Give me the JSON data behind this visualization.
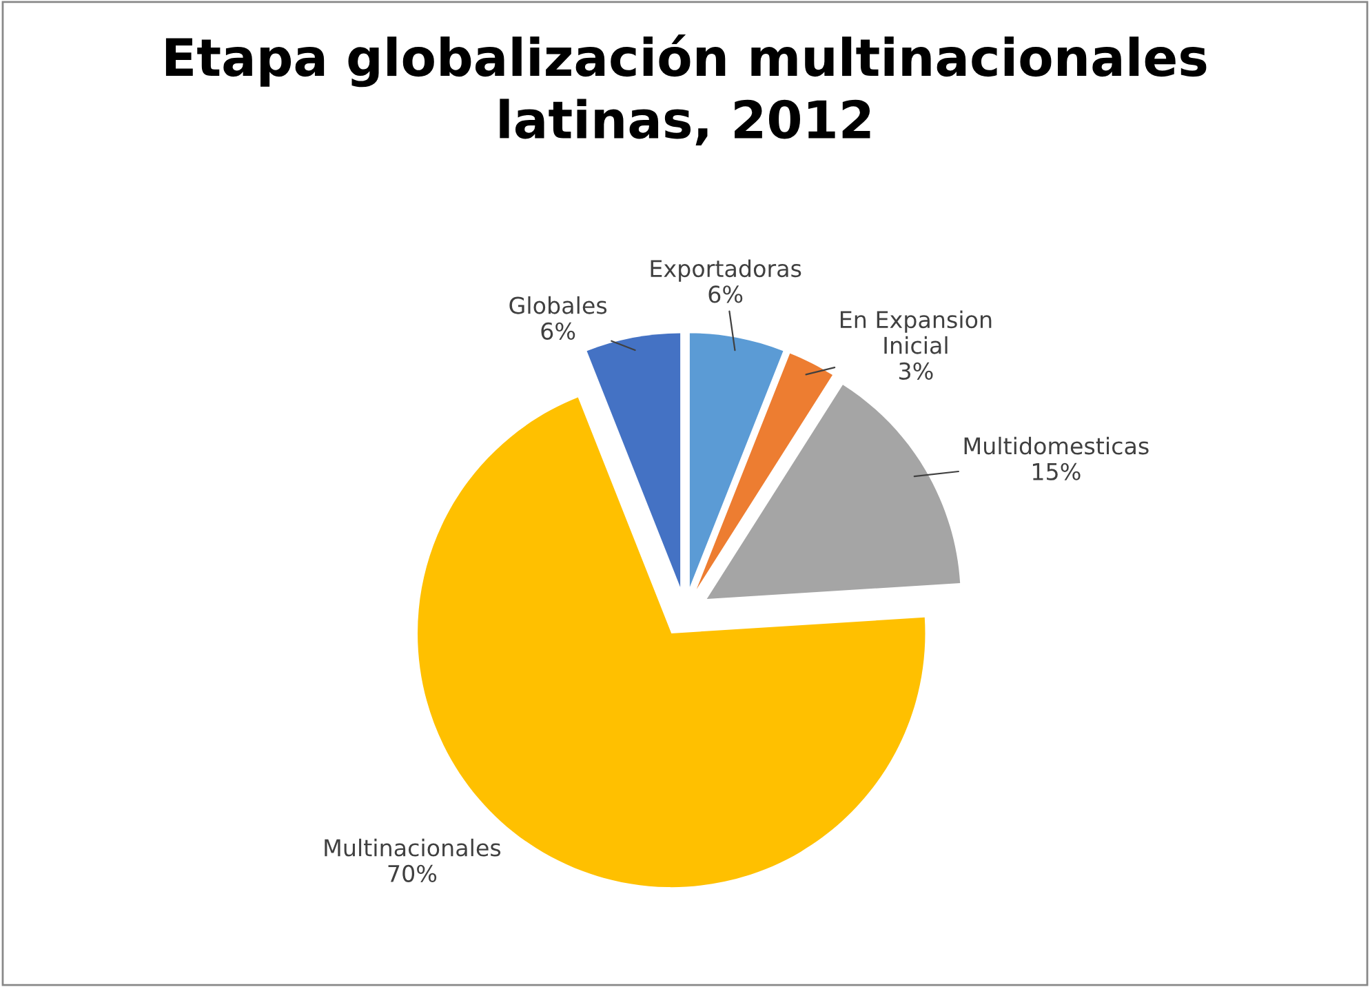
{
  "chart_data": {
    "type": "pie",
    "title": "Etapa globalización multinacionales\nlatinas, 2012",
    "categories": [
      "Exportadoras",
      "En Expansion\nInicial",
      "Multidomesticas",
      "Multinacionales",
      "Globales"
    ],
    "values": [
      6,
      3,
      15,
      70,
      6
    ],
    "colors": [
      "#5b9bd5",
      "#ed7d31",
      "#a5a5a5",
      "#ffc000",
      "#4472c4"
    ],
    "value_labels": [
      "6%",
      "3%",
      "15%",
      "70%",
      "6%"
    ],
    "legend": false
  }
}
